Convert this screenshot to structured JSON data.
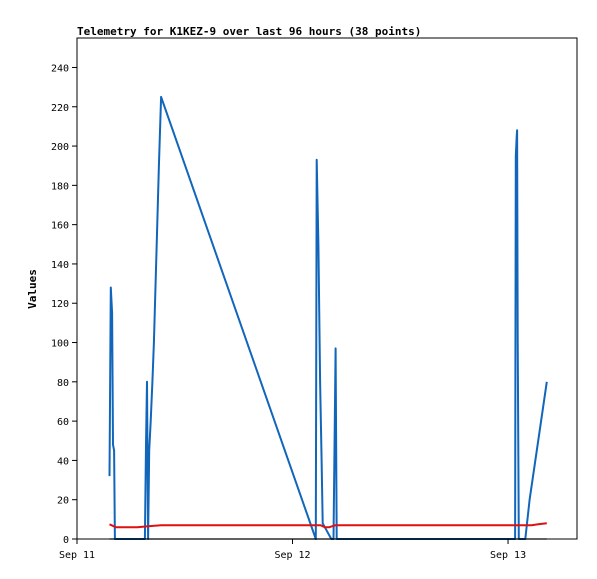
{
  "chart_data": {
    "type": "line",
    "title": "Telemetry for K1KEZ-9 over last 96 hours (38 points)",
    "xlabel": "",
    "ylabel": "Values",
    "xlim": [
      0,
      2.32
    ],
    "ylim": [
      0,
      255
    ],
    "x_ticks": [
      {
        "x": 0,
        "label": "Sep 11"
      },
      {
        "x": 1,
        "label": "Sep 12"
      },
      {
        "x": 2,
        "label": "Sep 13"
      }
    ],
    "y_ticks": [
      0,
      20,
      40,
      60,
      80,
      100,
      120,
      140,
      160,
      180,
      200,
      220,
      240
    ],
    "grid": false,
    "colors": {
      "series_1": "#1166bb",
      "series_2": "#dd1111",
      "series_3": "#000000"
    },
    "series": [
      {
        "points": [
          [
            0.151,
            32
          ],
          [
            0.157,
            128
          ],
          [
            0.163,
            115
          ],
          [
            0.167,
            48
          ],
          [
            0.172,
            45
          ],
          [
            0.176,
            0
          ],
          [
            0.315,
            0
          ],
          [
            0.32,
            48
          ],
          [
            0.325,
            80
          ],
          [
            0.33,
            0
          ],
          [
            0.335,
            45
          ],
          [
            0.342,
            60
          ],
          [
            0.35,
            80
          ],
          [
            0.357,
            100
          ],
          [
            0.37,
            150
          ],
          [
            0.38,
            190
          ],
          [
            0.39,
            225
          ],
          [
            1.108,
            0
          ],
          [
            1.112,
            193
          ],
          [
            1.12,
            150
          ],
          [
            1.128,
            80
          ],
          [
            1.135,
            40
          ],
          [
            1.14,
            8
          ],
          [
            1.18,
            0
          ],
          [
            1.185,
            0
          ],
          [
            1.19,
            0
          ],
          [
            1.2,
            97
          ],
          [
            1.205,
            0
          ],
          [
            2.033,
            0
          ],
          [
            2.036,
            195
          ],
          [
            2.04,
            205
          ],
          [
            2.042,
            208
          ],
          [
            2.045,
            102
          ],
          [
            2.05,
            0
          ],
          [
            2.08,
            0
          ],
          [
            2.1,
            20
          ],
          [
            2.14,
            50
          ],
          [
            2.18,
            80
          ]
        ]
      },
      {
        "points": [
          [
            0.151,
            7.5
          ],
          [
            0.18,
            6
          ],
          [
            0.28,
            6
          ],
          [
            0.33,
            6.5
          ],
          [
            0.39,
            7
          ],
          [
            1.13,
            7
          ],
          [
            1.15,
            6
          ],
          [
            1.17,
            6
          ],
          [
            1.2,
            7
          ],
          [
            2.0,
            7
          ],
          [
            2.11,
            7
          ],
          [
            2.14,
            7.5
          ],
          [
            2.18,
            8
          ]
        ]
      },
      {
        "points": [
          [
            0.151,
            0
          ],
          [
            2.18,
            0
          ]
        ]
      }
    ]
  }
}
